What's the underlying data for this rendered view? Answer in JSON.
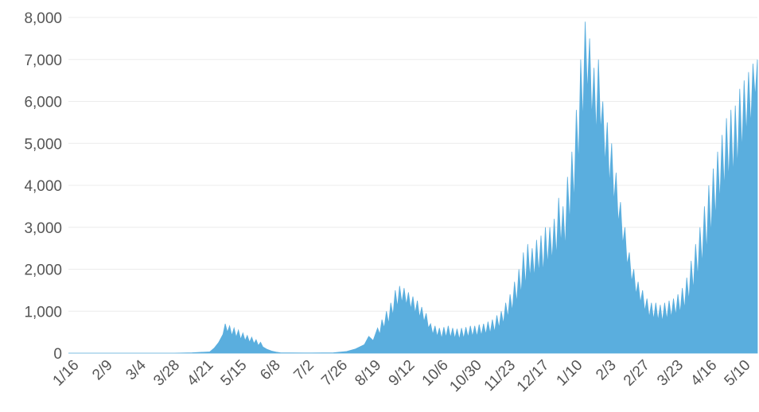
{
  "chart_data": {
    "type": "area",
    "title": "",
    "xlabel": "",
    "ylabel": "",
    "ylim": [
      0,
      8000
    ],
    "y_ticks": [
      0,
      1000,
      2000,
      3000,
      4000,
      5000,
      6000,
      7000,
      8000
    ],
    "y_tick_labels": [
      "0",
      "1,000",
      "2,000",
      "3,000",
      "4,000",
      "5,000",
      "6,000",
      "7,000",
      "8,000"
    ],
    "x_tick_labels": [
      "1/16",
      "2/9",
      "3/4",
      "3/28",
      "4/21",
      "5/15",
      "6/8",
      "7/2",
      "7/26",
      "8/19",
      "9/12",
      "10/6",
      "10/30",
      "11/23",
      "12/17",
      "1/10",
      "2/3",
      "2/27",
      "3/23",
      "4/16",
      "5/10"
    ],
    "grid": true,
    "legend": "none",
    "color": "#5aaede",
    "series": [
      {
        "values": [
          [
            0,
            0
          ],
          [
            24,
            0
          ],
          [
            48,
            0
          ],
          [
            56,
            10
          ],
          [
            64,
            30
          ],
          [
            66,
            120
          ],
          [
            68,
            250
          ],
          [
            70,
            450
          ],
          [
            71,
            700
          ],
          [
            72,
            500
          ],
          [
            73,
            650
          ],
          [
            74,
            420
          ],
          [
            75,
            600
          ],
          [
            76,
            380
          ],
          [
            77,
            550
          ],
          [
            78,
            330
          ],
          [
            79,
            480
          ],
          [
            80,
            300
          ],
          [
            81,
            420
          ],
          [
            82,
            260
          ],
          [
            83,
            380
          ],
          [
            84,
            230
          ],
          [
            85,
            320
          ],
          [
            86,
            180
          ],
          [
            87,
            260
          ],
          [
            88,
            150
          ],
          [
            90,
            90
          ],
          [
            92,
            50
          ],
          [
            94,
            25
          ],
          [
            96,
            10
          ],
          [
            100,
            5
          ],
          [
            110,
            3
          ],
          [
            120,
            10
          ],
          [
            126,
            40
          ],
          [
            130,
            100
          ],
          [
            134,
            200
          ],
          [
            136,
            400
          ],
          [
            138,
            300
          ],
          [
            140,
            600
          ],
          [
            141,
            450
          ],
          [
            142,
            800
          ],
          [
            143,
            600
          ],
          [
            144,
            1000
          ],
          [
            145,
            700
          ],
          [
            146,
            1200
          ],
          [
            147,
            900
          ],
          [
            148,
            1500
          ],
          [
            149,
            1100
          ],
          [
            150,
            1600
          ],
          [
            151,
            1200
          ],
          [
            152,
            1550
          ],
          [
            153,
            1150
          ],
          [
            154,
            1450
          ],
          [
            155,
            1050
          ],
          [
            156,
            1350
          ],
          [
            157,
            950
          ],
          [
            158,
            1250
          ],
          [
            159,
            850
          ],
          [
            160,
            1100
          ],
          [
            161,
            750
          ],
          [
            162,
            950
          ],
          [
            163,
            600
          ],
          [
            164,
            700
          ],
          [
            165,
            450
          ],
          [
            166,
            650
          ],
          [
            167,
            400
          ],
          [
            168,
            600
          ],
          [
            169,
            350
          ],
          [
            170,
            620
          ],
          [
            171,
            380
          ],
          [
            172,
            650
          ],
          [
            173,
            370
          ],
          [
            174,
            600
          ],
          [
            175,
            350
          ],
          [
            176,
            580
          ],
          [
            177,
            330
          ],
          [
            178,
            600
          ],
          [
            179,
            350
          ],
          [
            180,
            620
          ],
          [
            181,
            380
          ],
          [
            182,
            650
          ],
          [
            183,
            400
          ],
          [
            184,
            650
          ],
          [
            185,
            400
          ],
          [
            186,
            680
          ],
          [
            187,
            420
          ],
          [
            188,
            700
          ],
          [
            189,
            450
          ],
          [
            190,
            750
          ],
          [
            191,
            470
          ],
          [
            192,
            800
          ],
          [
            193,
            500
          ],
          [
            194,
            900
          ],
          [
            195,
            600
          ],
          [
            196,
            1000
          ],
          [
            197,
            700
          ],
          [
            198,
            1200
          ],
          [
            199,
            850
          ],
          [
            200,
            1400
          ],
          [
            201,
            1000
          ],
          [
            202,
            1700
          ],
          [
            203,
            1200
          ],
          [
            204,
            2000
          ],
          [
            205,
            1400
          ],
          [
            206,
            2400
          ],
          [
            207,
            1600
          ],
          [
            208,
            2600
          ],
          [
            209,
            1800
          ],
          [
            210,
            2500
          ],
          [
            211,
            1800
          ],
          [
            212,
            2700
          ],
          [
            213,
            1900
          ],
          [
            214,
            2800
          ],
          [
            215,
            1900
          ],
          [
            216,
            3000
          ],
          [
            217,
            2100
          ],
          [
            218,
            3000
          ],
          [
            219,
            2200
          ],
          [
            220,
            3200
          ],
          [
            221,
            2300
          ],
          [
            222,
            3700
          ],
          [
            223,
            2600
          ],
          [
            224,
            3500
          ],
          [
            225,
            2500
          ],
          [
            226,
            4200
          ],
          [
            227,
            3100
          ],
          [
            228,
            4800
          ],
          [
            229,
            3600
          ],
          [
            230,
            5800
          ],
          [
            231,
            4500
          ],
          [
            232,
            7000
          ],
          [
            233,
            5500
          ],
          [
            234,
            7900
          ],
          [
            235,
            6200
          ],
          [
            236,
            7500
          ],
          [
            237,
            5600
          ],
          [
            238,
            6800
          ],
          [
            239,
            5200
          ],
          [
            240,
            7000
          ],
          [
            241,
            5300
          ],
          [
            242,
            6000
          ],
          [
            243,
            4500
          ],
          [
            244,
            5500
          ],
          [
            245,
            4000
          ],
          [
            246,
            5000
          ],
          [
            247,
            3600
          ],
          [
            248,
            4300
          ],
          [
            249,
            3100
          ],
          [
            250,
            3600
          ],
          [
            251,
            2600
          ],
          [
            252,
            3000
          ],
          [
            253,
            2100
          ],
          [
            254,
            2400
          ],
          [
            255,
            1700
          ],
          [
            256,
            2000
          ],
          [
            257,
            1400
          ],
          [
            258,
            1700
          ],
          [
            259,
            1200
          ],
          [
            260,
            1500
          ],
          [
            261,
            1000
          ],
          [
            262,
            1300
          ],
          [
            263,
            850
          ],
          [
            264,
            1200
          ],
          [
            265,
            800
          ],
          [
            266,
            1200
          ],
          [
            267,
            780
          ],
          [
            268,
            1150
          ],
          [
            269,
            750
          ],
          [
            270,
            1200
          ],
          [
            271,
            800
          ],
          [
            272,
            1250
          ],
          [
            273,
            850
          ],
          [
            274,
            1300
          ],
          [
            275,
            900
          ],
          [
            276,
            1400
          ],
          [
            277,
            950
          ],
          [
            278,
            1550
          ],
          [
            279,
            1050
          ],
          [
            280,
            1800
          ],
          [
            281,
            1250
          ],
          [
            282,
            2200
          ],
          [
            283,
            1500
          ],
          [
            284,
            2600
          ],
          [
            285,
            1800
          ],
          [
            286,
            3000
          ],
          [
            287,
            2100
          ],
          [
            288,
            3500
          ],
          [
            289,
            2400
          ],
          [
            290,
            4000
          ],
          [
            291,
            2800
          ],
          [
            292,
            4400
          ],
          [
            293,
            3200
          ],
          [
            294,
            4800
          ],
          [
            295,
            3600
          ],
          [
            296,
            5200
          ],
          [
            297,
            3900
          ],
          [
            298,
            5600
          ],
          [
            299,
            4100
          ],
          [
            300,
            5800
          ],
          [
            301,
            4200
          ],
          [
            302,
            5900
          ],
          [
            303,
            4400
          ],
          [
            304,
            6300
          ],
          [
            305,
            4800
          ],
          [
            306,
            6500
          ],
          [
            307,
            5200
          ],
          [
            308,
            6700
          ],
          [
            309,
            5400
          ],
          [
            310,
            6900
          ],
          [
            311,
            6100
          ],
          [
            312,
            7000
          ]
        ]
      }
    ]
  }
}
